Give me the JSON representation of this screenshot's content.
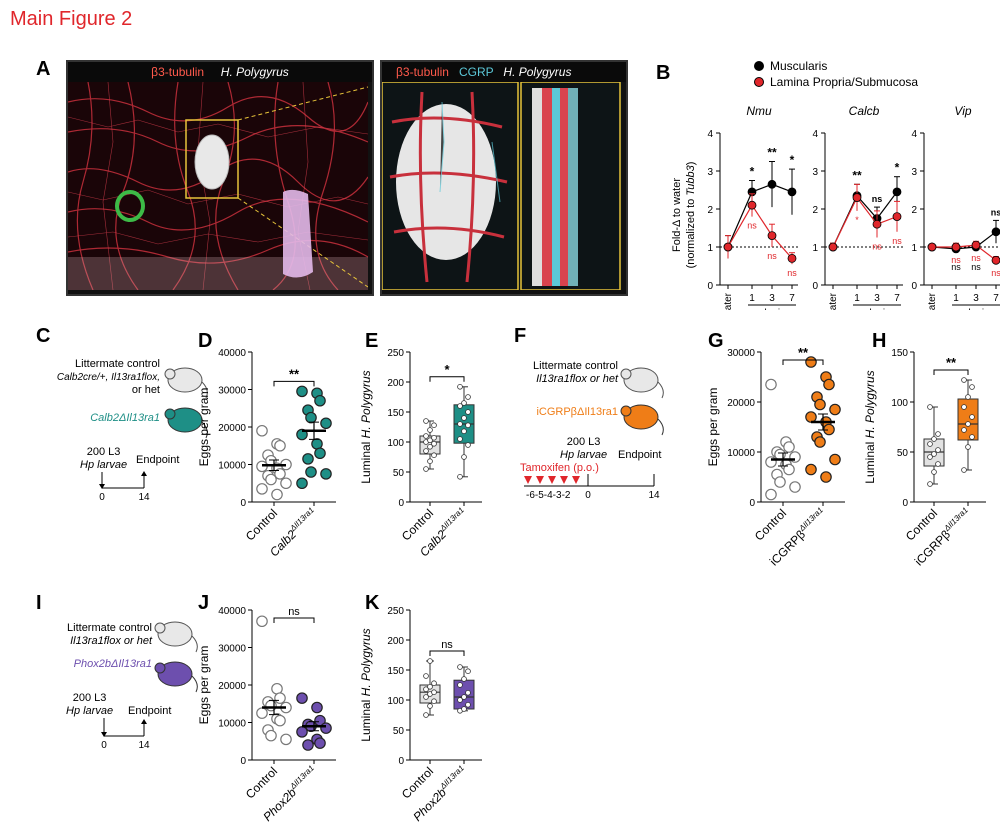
{
  "figure_title": "Main Figure 2",
  "colors": {
    "red": "#e0262b",
    "teal": "#1e8f86",
    "orange": "#ef7d17",
    "purple": "#6d4fae",
    "cyan": "#5cc8d8",
    "green": "#3dbb47",
    "grey": "#d6d6d6",
    "black": "#000000"
  },
  "panel_a": {
    "letter": "A",
    "left_header": {
      "tubulin": "β3-tubulin",
      "parasite": "H. Polygyrus"
    },
    "right_header": {
      "tubulin": "β3-tubulin",
      "cgrp": "CGRP",
      "parasite": "H. Polygyrus"
    }
  },
  "panel_b": {
    "letter": "B",
    "legend": [
      "Muscularis",
      "Lamina Propria/Submucosa"
    ],
    "ylabel_line1": "Fold-Δ to water",
    "ylabel_line2": "(normalized to Tubb3)",
    "xlabel": "d.p.i.",
    "xticks": [
      "Water",
      "1",
      "3",
      "7"
    ]
  },
  "panel_c": {
    "letter": "C",
    "ctrl_label": [
      "Littermate control",
      "Calb2cre/+, Il13ra1flox,",
      "or het"
    ],
    "ko_label": "Calb2ΔIl13ra1",
    "infection": [
      "200 L3",
      "Hp larvae"
    ],
    "endpoint": "Endpoint",
    "t0": "0",
    "t1": "14"
  },
  "panel_f": {
    "letter": "F",
    "ctrl_label": [
      "Littermate control",
      "Il13ra1flox or het"
    ],
    "ko_label": "iCGRPβΔIl13ra1",
    "infection": [
      "200 L3",
      "Hp larvae"
    ],
    "endpoint": "Endpoint",
    "tamoxifen": "Tamoxifen (p.o.)",
    "days": "-6-5-4-3-2",
    "t0": "0",
    "t1": "14"
  },
  "panel_i": {
    "letter": "I",
    "ctrl_label": [
      "Littermate control",
      "Il13ra1flox or het"
    ],
    "ko_label": "Phox2bΔIl13ra1",
    "infection": [
      "200 L3",
      "Hp larvae"
    ],
    "endpoint": "Endpoint",
    "t0": "0",
    "t1": "14"
  },
  "chart_data": [
    {
      "id": "B-Nmu",
      "type": "line",
      "title": "Nmu",
      "categories": [
        "Water",
        "1",
        "3",
        "7"
      ],
      "ylim": [
        0,
        4
      ],
      "yticks": [
        0,
        1,
        2,
        3,
        4
      ],
      "series": [
        {
          "name": "Muscularis",
          "values": [
            1.0,
            2.45,
            2.65,
            2.45
          ],
          "errors": [
            0.3,
            0.3,
            0.6,
            0.6
          ]
        },
        {
          "name": "Lamina Propria/Submucosa",
          "values": [
            1.0,
            2.1,
            1.3,
            0.7
          ],
          "errors": [
            0.3,
            0.3,
            0.3,
            0.15
          ]
        }
      ],
      "sig_top": [
        "",
        "*",
        "**",
        "*"
      ],
      "sig_red": [
        "",
        "ns",
        "ns",
        "ns"
      ],
      "sig_black_below": [
        "",
        "",
        "",
        ""
      ]
    },
    {
      "id": "B-Calcb",
      "type": "line",
      "title": "Calcb",
      "categories": [
        "Water",
        "1",
        "3",
        "7"
      ],
      "ylim": [
        0,
        4
      ],
      "yticks": [
        0,
        1,
        2,
        3,
        4
      ],
      "series": [
        {
          "name": "Muscularis",
          "values": [
            1.0,
            2.35,
            1.75,
            2.45
          ],
          "errors": [
            0.1,
            0.3,
            0.3,
            0.4
          ]
        },
        {
          "name": "Lamina Propria/Submucosa",
          "values": [
            1.0,
            2.3,
            1.6,
            1.8
          ],
          "errors": [
            0.1,
            0.35,
            0.35,
            0.4
          ]
        }
      ],
      "sig_top": [
        "",
        "**",
        "ns",
        "*"
      ],
      "sig_red": [
        "",
        "*",
        "ns",
        "ns"
      ],
      "sig_black_below": [
        "",
        "",
        "",
        ""
      ]
    },
    {
      "id": "B-Vip",
      "type": "line",
      "title": "Vip",
      "categories": [
        "Water",
        "1",
        "3",
        "7"
      ],
      "ylim": [
        0,
        4
      ],
      "yticks": [
        0,
        1,
        2,
        3,
        4
      ],
      "series": [
        {
          "name": "Muscularis",
          "values": [
            1.0,
            0.95,
            1.0,
            1.4
          ],
          "errors": [
            0.05,
            0.1,
            0.1,
            0.3
          ]
        },
        {
          "name": "Lamina Propria/Submucosa",
          "values": [
            1.0,
            1.0,
            1.05,
            0.65
          ],
          "errors": [
            0.05,
            0.1,
            0.1,
            0.1
          ]
        }
      ],
      "sig_top": [
        "",
        "",
        "",
        "ns"
      ],
      "sig_red": [
        "",
        "ns",
        "ns",
        "ns"
      ],
      "sig_black_below": [
        "",
        "ns",
        "ns",
        ""
      ]
    },
    {
      "id": "D",
      "type": "scatter",
      "ylabel": "Eggs per gram",
      "categories": [
        "Control",
        "Calb2ΔIl13ra1"
      ],
      "ylim": [
        0,
        40000
      ],
      "yticks": [
        0,
        10000,
        20000,
        30000,
        40000
      ],
      "sig": "**",
      "series": [
        {
          "name": "Control",
          "mean": 9800,
          "sem": 1400,
          "values": [
            19000,
            15500,
            15000,
            12500,
            11000,
            10000,
            9500,
            9000,
            7500,
            7000,
            6000,
            5000,
            3500,
            2000
          ]
        },
        {
          "name": "Calb2ΔIl13ra1",
          "mean": 19000,
          "sem": 2300,
          "values": [
            29500,
            29000,
            27000,
            24500,
            22500,
            21000,
            18000,
            15500,
            13000,
            11500,
            8000,
            7500,
            5000
          ]
        }
      ]
    },
    {
      "id": "E",
      "type": "box",
      "ylabel": "Luminal H. Polygyrus",
      "categories": [
        "Control",
        "Calb2ΔIl13ra1"
      ],
      "ylim": [
        0,
        250
      ],
      "yticks": [
        0,
        50,
        100,
        150,
        200,
        250
      ],
      "sig": "*",
      "series": [
        {
          "name": "Control",
          "min": 55,
          "q1": 80,
          "median": 100,
          "q3": 110,
          "max": 135,
          "values": [
            55,
            68,
            78,
            85,
            92,
            97,
            100,
            103,
            107,
            110,
            120,
            128,
            135
          ]
        },
        {
          "name": "Calb2ΔIl13ra1",
          "min": 42,
          "q1": 98,
          "median": 130,
          "q3": 162,
          "max": 192,
          "values": [
            42,
            75,
            95,
            105,
            118,
            128,
            130,
            140,
            150,
            160,
            165,
            175,
            192
          ]
        }
      ]
    },
    {
      "id": "G",
      "type": "scatter",
      "ylabel": "Eggs per gram",
      "categories": [
        "Control",
        "iCGRPβΔIl13ra1"
      ],
      "ylim": [
        0,
        30000
      ],
      "yticks": [
        0,
        10000,
        20000,
        30000
      ],
      "sig": "**",
      "series": [
        {
          "name": "Control",
          "mean": 8500,
          "sem": 1300,
          "values": [
            23500,
            12000,
            11000,
            10000,
            9500,
            9000,
            8000,
            7500,
            6500,
            5500,
            4000,
            3000,
            1500
          ]
        },
        {
          "name": "iCGRPβΔIl13ra1",
          "mean": 16000,
          "sem": 1600,
          "values": [
            28000,
            25000,
            23500,
            21000,
            19500,
            18500,
            17000,
            16000,
            14500,
            13000,
            12000,
            8500,
            6500,
            5000
          ]
        }
      ]
    },
    {
      "id": "H",
      "type": "box",
      "ylabel": "Luminal H. Polygyrus",
      "categories": [
        "Control",
        "iCGRPβΔIl13ra1"
      ],
      "ylim": [
        0,
        150
      ],
      "yticks": [
        0,
        50,
        100,
        150
      ],
      "sig": "**",
      "series": [
        {
          "name": "Control",
          "min": 18,
          "q1": 36,
          "median": 50,
          "q3": 63,
          "max": 95,
          "values": [
            18,
            30,
            38,
            45,
            48,
            52,
            58,
            63,
            68,
            95
          ]
        },
        {
          "name": "iCGRPβΔIl13ra1",
          "min": 32,
          "q1": 62,
          "median": 78,
          "q3": 103,
          "max": 122,
          "values": [
            32,
            55,
            65,
            72,
            78,
            85,
            95,
            105,
            115,
            122
          ]
        }
      ]
    },
    {
      "id": "J",
      "type": "scatter",
      "ylabel": "Eggs per gram",
      "categories": [
        "Control",
        "Phox2bΔIl13ra1"
      ],
      "ylim": [
        0,
        40000
      ],
      "yticks": [
        0,
        10000,
        20000,
        30000,
        40000
      ],
      "sig": "ns",
      "series": [
        {
          "name": "Control",
          "mean": 14000,
          "sem": 1900,
          "values": [
            37000,
            19000,
            16500,
            15500,
            14500,
            14000,
            12500,
            11000,
            10500,
            8000,
            6500,
            5500
          ]
        },
        {
          "name": "Phox2bΔIl13ra1",
          "mean": 9000,
          "sem": 1200,
          "values": [
            16500,
            14000,
            10500,
            9500,
            9000,
            8500,
            7500,
            5500,
            4500,
            4000
          ]
        }
      ]
    },
    {
      "id": "K",
      "type": "box",
      "ylabel": "Luminal H. Polygyrus",
      "categories": [
        "Control",
        "Phox2bΔIl13ra1"
      ],
      "ylim": [
        0,
        250
      ],
      "yticks": [
        0,
        50,
        100,
        150,
        200,
        250
      ],
      "sig": "ns",
      "series": [
        {
          "name": "Control",
          "min": 75,
          "q1": 95,
          "median": 113,
          "q3": 125,
          "max": 165,
          "values": [
            75,
            90,
            98,
            105,
            110,
            113,
            118,
            122,
            128,
            140,
            165
          ]
        },
        {
          "name": "Phox2bΔIl13ra1",
          "min": 82,
          "q1": 85,
          "median": 105,
          "q3": 133,
          "max": 155,
          "values": [
            82,
            85,
            92,
            100,
            105,
            112,
            125,
            135,
            148,
            155
          ]
        }
      ]
    }
  ]
}
